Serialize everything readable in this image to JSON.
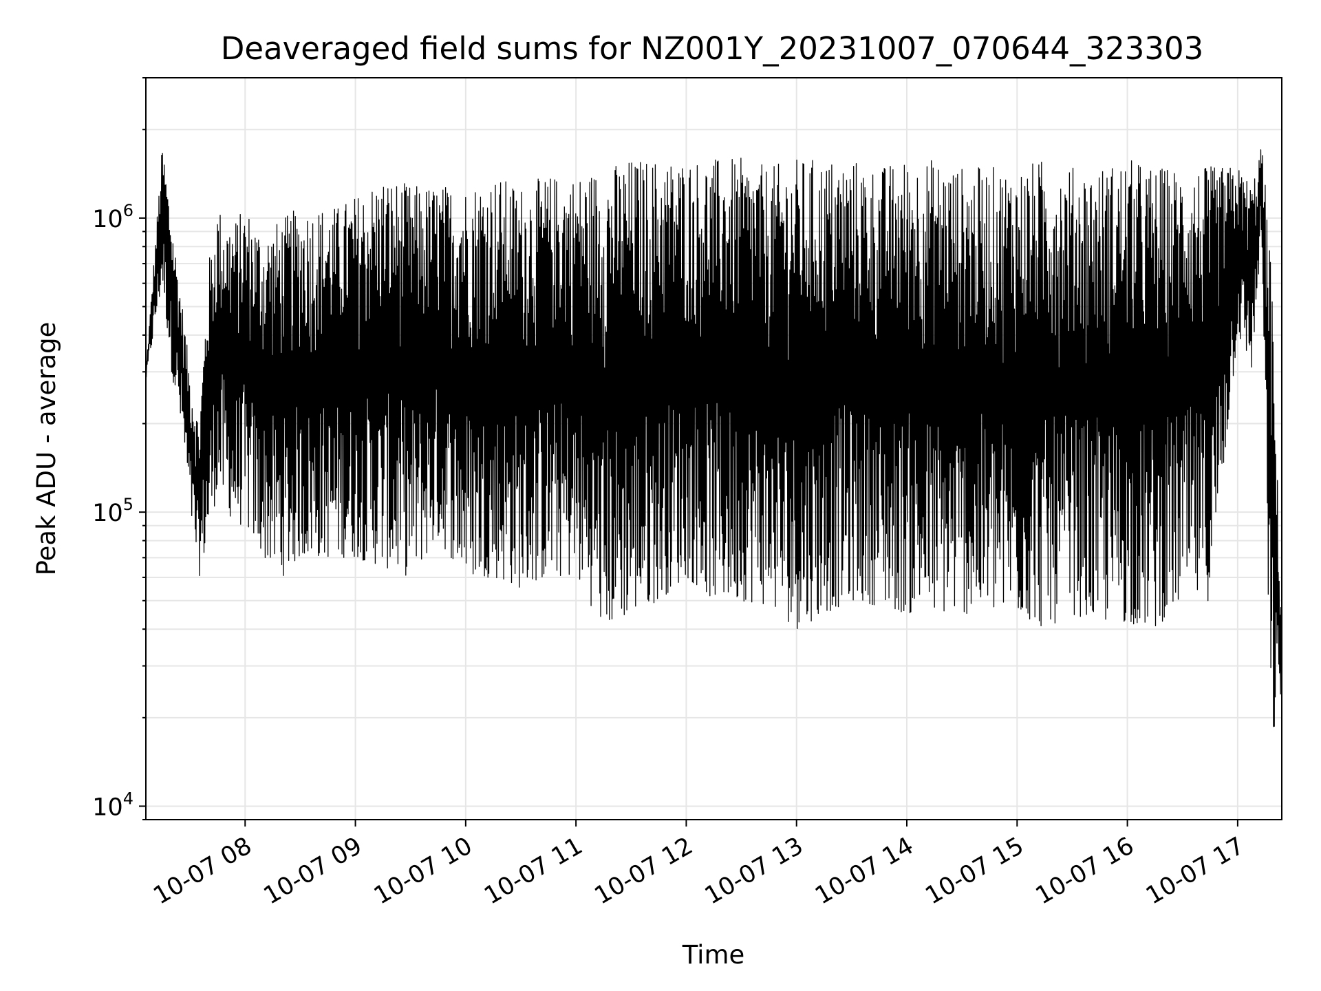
{
  "chart_data": {
    "type": "line",
    "title": "Deaveraged field sums for NZ001Y_20231007_070644_323303",
    "xlabel": "Time",
    "ylabel": "Peak ADU - average",
    "yscale": "log",
    "grid": true,
    "line_color": "#000000",
    "xlim": [
      "2023-10-07 07:06",
      "2023-10-07 17:24"
    ],
    "ylim": [
      9000,
      3000000
    ],
    "x_ticks": [
      {
        "value": "2023-10-07 08:00",
        "label": "10-07 08"
      },
      {
        "value": "2023-10-07 09:00",
        "label": "10-07 09"
      },
      {
        "value": "2023-10-07 10:00",
        "label": "10-07 10"
      },
      {
        "value": "2023-10-07 11:00",
        "label": "10-07 11"
      },
      {
        "value": "2023-10-07 12:00",
        "label": "10-07 12"
      },
      {
        "value": "2023-10-07 13:00",
        "label": "10-07 13"
      },
      {
        "value": "2023-10-07 14:00",
        "label": "10-07 14"
      },
      {
        "value": "2023-10-07 15:00",
        "label": "10-07 15"
      },
      {
        "value": "2023-10-07 16:00",
        "label": "10-07 16"
      },
      {
        "value": "2023-10-07 17:00",
        "label": "10-07 17"
      }
    ],
    "y_ticks": [
      {
        "value": 10000,
        "base": "10",
        "exp": "4"
      },
      {
        "value": 100000,
        "base": "10",
        "exp": "5"
      },
      {
        "value": 1000000,
        "base": "10",
        "exp": "6"
      }
    ],
    "series": [
      {
        "x": [
          "2023-10-07 07:06",
          "2023-10-07 07:15",
          "2023-10-07 07:20",
          "2023-10-07 07:26",
          "2023-10-07 07:30",
          "2023-10-07 07:35",
          "2023-10-07 07:40",
          "2023-10-07 07:45",
          "2023-10-07 07:50",
          "2023-10-07 07:55",
          "2023-10-07 08:00",
          "2023-10-07 08:10",
          "2023-10-07 08:20",
          "2023-10-07 08:30",
          "2023-10-07 08:40",
          "2023-10-07 08:50",
          "2023-10-07 09:00",
          "2023-10-07 09:15",
          "2023-10-07 09:30",
          "2023-10-07 09:45",
          "2023-10-07 10:00",
          "2023-10-07 10:15",
          "2023-10-07 10:30",
          "2023-10-07 10:45",
          "2023-10-07 11:00",
          "2023-10-07 11:15",
          "2023-10-07 11:30",
          "2023-10-07 11:45",
          "2023-10-07 12:00",
          "2023-10-07 12:15",
          "2023-10-07 12:30",
          "2023-10-07 12:45",
          "2023-10-07 13:00",
          "2023-10-07 13:15",
          "2023-10-07 13:30",
          "2023-10-07 13:45",
          "2023-10-07 14:00",
          "2023-10-07 14:15",
          "2023-10-07 14:30",
          "2023-10-07 14:45",
          "2023-10-07 15:00",
          "2023-10-07 15:15",
          "2023-10-07 15:30",
          "2023-10-07 15:45",
          "2023-10-07 16:00",
          "2023-10-07 16:15",
          "2023-10-07 16:30",
          "2023-10-07 16:45",
          "2023-10-07 17:00",
          "2023-10-07 17:08",
          "2023-10-07 17:13",
          "2023-10-07 17:18",
          "2023-10-07 17:24"
        ],
        "upper": [
          300000,
          1800000,
          1000000,
          500000,
          300000,
          200000,
          700000,
          1100000,
          1000000,
          1000000,
          1100000,
          900000,
          1000000,
          1100000,
          1100000,
          1100000,
          1200000,
          1400000,
          1300000,
          1300000,
          1300000,
          1400000,
          1300000,
          1400000,
          1400000,
          1500000,
          1600000,
          1600000,
          1600000,
          1600000,
          1600000,
          1500000,
          1600000,
          1600000,
          1600000,
          1500000,
          1600000,
          1600000,
          1500000,
          1500000,
          1500000,
          1600000,
          1500000,
          1500000,
          1600000,
          1500000,
          1500000,
          1500000,
          1500000,
          1300000,
          1800000,
          800000,
          40000
        ],
        "lower": [
          280000,
          600000,
          300000,
          180000,
          100000,
          60000,
          80000,
          120000,
          100000,
          90000,
          90000,
          70000,
          60000,
          70000,
          70000,
          70000,
          70000,
          65000,
          60000,
          80000,
          60000,
          60000,
          55000,
          60000,
          60000,
          40000,
          45000,
          50000,
          60000,
          50000,
          50000,
          48000,
          40000,
          45000,
          50000,
          48000,
          45000,
          45000,
          45000,
          45000,
          45000,
          40000,
          45000,
          42000,
          42000,
          40000,
          50000,
          50000,
          400000,
          300000,
          900000,
          15000,
          25000
        ]
      }
    ]
  }
}
